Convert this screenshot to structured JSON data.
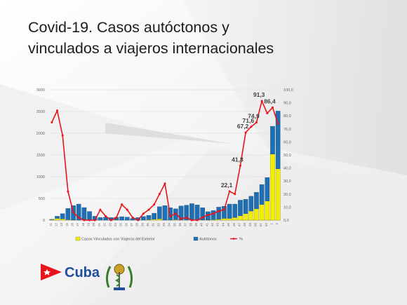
{
  "title": {
    "line1": "Covid-19. Casos autóctonos y",
    "line2": "vinculados a viajeros internacionales"
  },
  "logo": {
    "text": "Cuba"
  },
  "colors": {
    "bar_vinculados": "#f2ee00",
    "bar_autoctonos": "#1f6fb4",
    "line_pct": "#e8141b",
    "grid": "#d9d9d9"
  },
  "chart_data": {
    "type": "bar",
    "stacked": true,
    "categories": [
      "11",
      "12",
      "13",
      "15",
      "16",
      "17",
      "18",
      "19",
      "20",
      "21",
      "22",
      "23",
      "24",
      "25",
      "26",
      "27",
      "28",
      "29",
      "30",
      "31",
      "32",
      "33",
      "34",
      "35",
      "36",
      "37",
      "38",
      "39",
      "40",
      "41",
      "42",
      "43",
      "44",
      "45",
      "46",
      "47",
      "48",
      "49",
      "50",
      "51",
      "52",
      "1",
      "2"
    ],
    "tick_labels": [
      "11",
      "12",
      "13",
      "15",
      "16",
      "17",
      "18",
      "19",
      "20",
      "21",
      "22",
      "23",
      "24",
      "25",
      "26",
      "27",
      "28",
      "29",
      "30",
      "31",
      "32",
      "33",
      "34",
      "35",
      "36",
      "37",
      "38",
      "39",
      "40",
      "41",
      "42",
      "43",
      "44",
      "45",
      "46",
      "47",
      "48",
      "49",
      "50",
      "51",
      "52",
      "1",
      "2"
    ],
    "series": [
      {
        "name": "Casos Vinculados con  Viajeros del Exterior",
        "kind": "bar",
        "axis": "left",
        "values": [
          10,
          40,
          30,
          10,
          5,
          0,
          0,
          0,
          0,
          0,
          0,
          0,
          5,
          0,
          0,
          0,
          0,
          5,
          10,
          20,
          30,
          5,
          5,
          10,
          5,
          5,
          0,
          0,
          5,
          5,
          10,
          20,
          40,
          40,
          60,
          100,
          150,
          210,
          260,
          360,
          440,
          1520,
          1180
        ]
      },
      {
        "name": "Autótonos",
        "kind": "bar",
        "axis": "left",
        "values": [
          10,
          50,
          120,
          260,
          330,
          370,
          290,
          200,
          90,
          60,
          70,
          60,
          60,
          80,
          70,
          40,
          60,
          80,
          100,
          140,
          280,
          330,
          280,
          250,
          320,
          340,
          380,
          350,
          280,
          190,
          210,
          280,
          280,
          330,
          310,
          360,
          330,
          340,
          380,
          460,
          540,
          640,
          1330
        ]
      },
      {
        "name": "%",
        "kind": "line",
        "axis": "right",
        "values": [
          75,
          84,
          65,
          22,
          6,
          2,
          0,
          0,
          0,
          8,
          3,
          0,
          2,
          12,
          8,
          2,
          0,
          5,
          8,
          12,
          20,
          28,
          3,
          5,
          1,
          2,
          0,
          0,
          2,
          4,
          5,
          7,
          8,
          22.1,
          20,
          41.8,
          67.2,
          71.6,
          74.9,
          91.3,
          82,
          86.4,
          74
        ]
      }
    ],
    "annotations": [
      {
        "category": "45",
        "label": "22,1"
      },
      {
        "category": "47",
        "label": "41,8"
      },
      {
        "category": "48",
        "label": "67,2"
      },
      {
        "category": "49",
        "label": "71,6"
      },
      {
        "category": "50",
        "label": "74,9"
      },
      {
        "category": "51",
        "label": "91,3"
      },
      {
        "category": "1",
        "label": "86,4"
      }
    ],
    "ylim_left": [
      0,
      3000
    ],
    "yticks_left": [
      "0",
      "500",
      "1000",
      "1500",
      "2000",
      "2500",
      "3000"
    ],
    "ylim_right": [
      0,
      100
    ],
    "yticks_right": [
      "0,0",
      "10,0",
      "20,0",
      "30,0",
      "40,0",
      "50,0",
      "60,0",
      "70,0",
      "80,0",
      "90,0",
      "100,0"
    ],
    "grid": true,
    "legend_position": "bottom"
  }
}
